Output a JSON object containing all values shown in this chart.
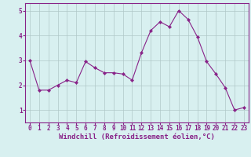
{
  "x": [
    0,
    1,
    2,
    3,
    4,
    5,
    6,
    7,
    8,
    9,
    10,
    11,
    12,
    13,
    14,
    15,
    16,
    17,
    18,
    19,
    20,
    21,
    22,
    23
  ],
  "y": [
    3.0,
    1.8,
    1.8,
    2.0,
    2.2,
    2.1,
    2.95,
    2.7,
    2.5,
    2.5,
    2.45,
    2.2,
    3.3,
    4.2,
    4.55,
    4.35,
    5.0,
    4.65,
    3.95,
    2.95,
    2.45,
    1.9,
    1.0,
    1.1
  ],
  "line_color": "#882288",
  "marker": "D",
  "marker_size": 2.2,
  "bg_color": "#d8f0f0",
  "grid_color": "#b0c8c8",
  "xlabel": "Windchill (Refroidissement éolien,°C)",
  "xlim": [
    -0.5,
    23.5
  ],
  "ylim": [
    0.5,
    5.3
  ],
  "yticks": [
    1,
    2,
    3,
    4,
    5
  ],
  "xticks": [
    0,
    1,
    2,
    3,
    4,
    5,
    6,
    7,
    8,
    9,
    10,
    11,
    12,
    13,
    14,
    15,
    16,
    17,
    18,
    19,
    20,
    21,
    22,
    23
  ],
  "axis_fontsize": 6.0,
  "tick_fontsize": 5.5,
  "xlabel_fontsize": 6.5
}
